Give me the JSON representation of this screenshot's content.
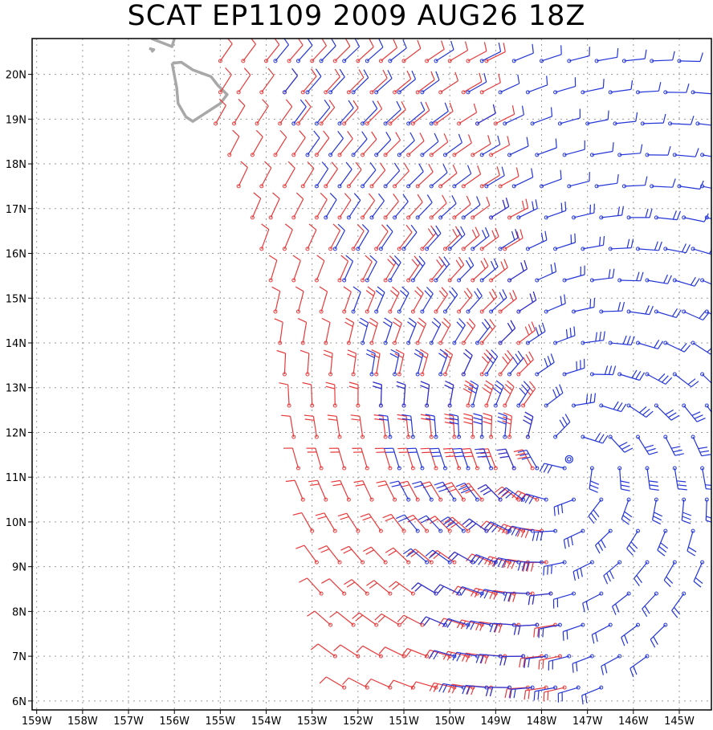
{
  "title": "SCAT EP1109 2009 AUG26 18Z",
  "colors": {
    "asc_pass": "#e8393a",
    "desc_pass": "#2335d8",
    "land": "#a8a8a8",
    "grid": "#9a9a9a"
  },
  "map": {
    "lon_range": [
      -159.1,
      -144.3
    ],
    "lat_range": [
      5.8,
      20.8
    ],
    "grid": true,
    "lon_ticks": [
      {
        "value": -159,
        "label": "159W"
      },
      {
        "value": -158,
        "label": "158W"
      },
      {
        "value": -157,
        "label": "157W"
      },
      {
        "value": -156,
        "label": "156W"
      },
      {
        "value": -155,
        "label": "155W"
      },
      {
        "value": -154,
        "label": "154W"
      },
      {
        "value": -153,
        "label": "153W"
      },
      {
        "value": -152,
        "label": "152W"
      },
      {
        "value": -151,
        "label": "151W"
      },
      {
        "value": -150,
        "label": "150W"
      },
      {
        "value": -149,
        "label": "149W"
      },
      {
        "value": -148,
        "label": "148W"
      },
      {
        "value": -147,
        "label": "147W"
      },
      {
        "value": -146,
        "label": "146W"
      },
      {
        "value": -145,
        "label": "145W"
      }
    ],
    "lat_ticks": [
      {
        "value": 6,
        "label": "6N"
      },
      {
        "value": 7,
        "label": "7N"
      },
      {
        "value": 8,
        "label": "8N"
      },
      {
        "value": 9,
        "label": "9N"
      },
      {
        "value": 10,
        "label": "10N"
      },
      {
        "value": 11,
        "label": "11N"
      },
      {
        "value": 12,
        "label": "12N"
      },
      {
        "value": 13,
        "label": "13N"
      },
      {
        "value": 14,
        "label": "14N"
      },
      {
        "value": 15,
        "label": "15N"
      },
      {
        "value": 16,
        "label": "16N"
      },
      {
        "value": 17,
        "label": "17N"
      },
      {
        "value": 18,
        "label": "18N"
      },
      {
        "value": 19,
        "label": "19N"
      },
      {
        "value": 20,
        "label": "20N"
      }
    ],
    "storm_center": {
      "lon": -147.4,
      "lat": 11.4
    },
    "land_outlines": [
      [
        [
          -156.05,
          20.25
        ],
        [
          -155.85,
          20.27
        ],
        [
          -155.6,
          20.1
        ],
        [
          -155.2,
          19.95
        ],
        [
          -155.05,
          19.75
        ],
        [
          -154.85,
          19.55
        ],
        [
          -155.0,
          19.35
        ],
        [
          -155.3,
          19.15
        ],
        [
          -155.6,
          18.95
        ],
        [
          -155.75,
          19.05
        ],
        [
          -155.92,
          19.35
        ],
        [
          -155.95,
          19.7
        ],
        [
          -156.05,
          20.25
        ]
      ],
      [
        [
          -156.5,
          20.8
        ],
        [
          -156.3,
          20.72
        ],
        [
          -156.05,
          20.62
        ],
        [
          -156.0,
          20.8
        ]
      ],
      [
        [
          -156.55,
          20.58
        ],
        [
          -156.45,
          20.55
        ],
        [
          -156.5,
          20.5
        ]
      ]
    ]
  },
  "chart_data": {
    "type": "scatter",
    "title": "SCAT EP1109 2009 AUG26 18Z",
    "xlabel": "",
    "ylabel": "",
    "xlim": [
      -159.1,
      -144.3
    ],
    "ylim": [
      5.8,
      20.8
    ],
    "grid": true,
    "series": [
      {
        "color": "#e8393a",
        "rows": [
          [
            20.3,
            [
              -155.0,
              -154.5,
              -154.0,
              -153.5,
              -153.0,
              -152.5,
              -152.0,
              -151.5,
              -151.0,
              -150.5,
              -150.0,
              -149.6,
              -149.2
            ]
          ],
          [
            19.6,
            [
              -155.0,
              -154.6,
              -154.1,
              -153.6,
              -153.2,
              -152.7,
              -152.2,
              -151.7,
              -151.2,
              -150.7,
              -150.2,
              -149.7,
              -149.3
            ]
          ],
          [
            18.9,
            [
              -155.1,
              -154.7,
              -154.2,
              -153.7,
              -153.3,
              -152.8,
              -152.3,
              -151.8,
              -151.3,
              -150.8,
              -150.3,
              -149.8,
              -149.4,
              -149.0
            ]
          ],
          [
            18.2,
            [
              -154.8,
              -154.3,
              -153.8,
              -153.4,
              -152.9,
              -152.4,
              -151.9,
              -151.4,
              -150.9,
              -150.4,
              -149.9,
              -149.5,
              -149.1
            ]
          ],
          [
            17.5,
            [
              -154.6,
              -154.1,
              -153.6,
              -153.2,
              -152.7,
              -152.2,
              -151.7,
              -151.2,
              -150.7,
              -150.2,
              -149.7,
              -149.3,
              -148.9
            ]
          ],
          [
            16.8,
            [
              -154.3,
              -153.9,
              -153.4,
              -152.9,
              -152.4,
              -151.9,
              -151.4,
              -150.9,
              -150.4,
              -149.9,
              -149.5,
              -149.1,
              -148.7
            ]
          ],
          [
            16.1,
            [
              -154.1,
              -153.6,
              -153.1,
              -152.6,
              -152.1,
              -151.6,
              -151.1,
              -150.6,
              -150.1,
              -149.7,
              -149.3,
              -148.8
            ]
          ],
          [
            15.4,
            [
              -153.9,
              -153.4,
              -152.9,
              -152.4,
              -151.9,
              -151.4,
              -150.9,
              -150.4,
              -150.0,
              -149.5,
              -149.1,
              -148.7
            ]
          ],
          [
            14.7,
            [
              -153.8,
              -153.3,
              -152.8,
              -152.3,
              -151.8,
              -151.3,
              -150.8,
              -150.3,
              -149.8,
              -149.3,
              -148.9,
              -148.5
            ]
          ],
          [
            14.0,
            [
              -153.7,
              -153.2,
              -152.7,
              -152.2,
              -151.7,
              -151.2,
              -150.7,
              -150.2,
              -149.7,
              -149.3,
              -148.9,
              -148.5
            ]
          ],
          [
            13.3,
            [
              -153.6,
              -153.1,
              -152.6,
              -152.1,
              -151.6,
              -151.1,
              -150.6,
              -150.1,
              -149.7,
              -149.3,
              -148.9,
              -148.5
            ]
          ],
          [
            12.6,
            [
              -153.5,
              -153.0,
              -152.5,
              -152.0,
              -151.5,
              -151.0,
              -150.5,
              -150.0,
              -149.6,
              -149.2,
              -148.8,
              -148.4
            ]
          ],
          [
            11.9,
            [
              -153.4,
              -152.9,
              -152.4,
              -151.9,
              -151.4,
              -150.9,
              -150.4,
              -149.9,
              -149.5,
              -149.1,
              -148.7,
              -148.3
            ]
          ],
          [
            11.2,
            [
              -153.3,
              -152.8,
              -152.3,
              -151.8,
              -151.3,
              -150.8,
              -150.3,
              -149.8,
              -149.4,
              -149.0,
              -148.6,
              -148.2
            ]
          ],
          [
            10.5,
            [
              -153.2,
              -152.7,
              -152.2,
              -151.7,
              -151.2,
              -150.7,
              -150.2,
              -149.7,
              -149.3,
              -148.9,
              -148.5,
              -148.1
            ]
          ],
          [
            9.8,
            [
              -153.0,
              -152.5,
              -152.0,
              -151.5,
              -151.0,
              -150.5,
              -150.0,
              -149.6,
              -149.2,
              -148.8,
              -148.4,
              -148.0
            ]
          ],
          [
            9.1,
            [
              -152.9,
              -152.4,
              -151.9,
              -151.4,
              -150.9,
              -150.4,
              -149.9,
              -149.5,
              -149.1,
              -148.7,
              -148.3,
              -147.9
            ]
          ],
          [
            8.4,
            [
              -152.8,
              -152.3,
              -151.8,
              -151.3,
              -150.8,
              -150.3,
              -149.8,
              -149.4,
              -149.0,
              -148.6,
              -148.2,
              -147.8
            ]
          ],
          [
            7.7,
            [
              -152.6,
              -152.1,
              -151.6,
              -151.1,
              -150.6,
              -150.1,
              -149.7,
              -149.3,
              -148.9,
              -148.5,
              -148.1,
              -147.7
            ]
          ],
          [
            7.0,
            [
              -152.5,
              -152.0,
              -151.5,
              -151.0,
              -150.5,
              -150.0,
              -149.6,
              -149.2,
              -148.8,
              -148.4,
              -148.0,
              -147.6
            ]
          ],
          [
            6.3,
            [
              -152.3,
              -151.8,
              -151.3,
              -150.8,
              -150.3,
              -149.9,
              -149.5,
              -149.1,
              -148.7,
              -148.3,
              -147.9,
              -147.5
            ]
          ]
        ]
      },
      {
        "color": "#2335d8",
        "rows": [
          [
            20.3,
            [
              -153.8,
              -153.3,
              -152.8,
              -152.3,
              -151.8,
              -151.3,
              -150.3,
              -149.3,
              -148.6,
              -148.0,
              -147.4,
              -146.8,
              -146.2,
              -145.6,
              -145.0
            ]
          ],
          [
            19.6,
            [
              -153.6,
              -153.1,
              -152.6,
              -152.1,
              -151.6,
              -151.1,
              -150.6,
              -149.6,
              -148.9,
              -148.3,
              -147.7,
              -147.1,
              -146.5,
              -145.9,
              -145.3,
              -144.7
            ]
          ],
          [
            18.9,
            [
              -153.4,
              -152.9,
              -152.4,
              -151.9,
              -151.4,
              -150.9,
              -150.4,
              -149.4,
              -148.8,
              -148.2,
              -147.6,
              -147.0,
              -146.4,
              -145.8,
              -145.2,
              -144.6
            ]
          ],
          [
            18.2,
            [
              -153.1,
              -152.6,
              -152.1,
              -151.6,
              -151.1,
              -150.6,
              -150.1,
              -149.3,
              -148.7,
              -148.1,
              -147.5,
              -146.9,
              -146.3,
              -145.7,
              -145.1,
              -144.5
            ]
          ],
          [
            17.5,
            [
              -152.9,
              -152.4,
              -151.9,
              -151.4,
              -150.9,
              -150.4,
              -149.9,
              -149.2,
              -148.6,
              -148.0,
              -147.4,
              -146.8,
              -146.2,
              -145.6,
              -145.0,
              -144.5
            ]
          ],
          [
            16.8,
            [
              -152.7,
              -152.2,
              -151.7,
              -151.2,
              -150.7,
              -150.2,
              -149.7,
              -149.1,
              -148.5,
              -147.9,
              -147.3,
              -146.7,
              -146.1,
              -145.5,
              -144.9,
              -144.4
            ]
          ],
          [
            16.1,
            [
              -152.5,
              -152.0,
              -151.5,
              -151.0,
              -150.5,
              -150.0,
              -149.5,
              -148.9,
              -148.3,
              -147.7,
              -147.1,
              -146.5,
              -145.9,
              -145.3,
              -144.7
            ]
          ],
          [
            15.4,
            [
              -152.3,
              -151.8,
              -151.3,
              -150.8,
              -150.3,
              -149.8,
              -149.3,
              -148.7,
              -148.1,
              -147.5,
              -146.9,
              -146.3,
              -145.7,
              -145.1,
              -144.5
            ]
          ],
          [
            14.7,
            [
              -152.1,
              -151.6,
              -151.1,
              -150.6,
              -150.1,
              -149.6,
              -149.1,
              -148.5,
              -147.9,
              -147.3,
              -146.7,
              -146.1,
              -145.5,
              -144.9,
              -144.4
            ]
          ],
          [
            14.0,
            [
              -151.9,
              -151.4,
              -150.9,
              -150.4,
              -149.9,
              -149.4,
              -148.9,
              -148.3,
              -147.7,
              -147.1,
              -146.5,
              -145.9,
              -145.3,
              -144.7
            ]
          ],
          [
            13.3,
            [
              -151.7,
              -151.2,
              -150.7,
              -150.2,
              -149.7,
              -149.2,
              -148.7,
              -148.1,
              -147.5,
              -146.9,
              -146.3,
              -145.7,
              -145.1,
              -144.5
            ]
          ],
          [
            12.6,
            [
              -151.5,
              -151.0,
              -150.5,
              -150.0,
              -149.5,
              -149.0,
              -148.5,
              -147.9,
              -147.3,
              -146.7,
              -146.1,
              -145.5,
              -144.9,
              -144.4
            ]
          ],
          [
            11.9,
            [
              -151.3,
              -150.8,
              -150.3,
              -149.8,
              -149.3,
              -148.8,
              -148.3,
              -147.7,
              -147.1,
              -146.5,
              -145.9,
              -145.3,
              -144.7
            ]
          ],
          [
            11.2,
            [
              -151.1,
              -150.6,
              -150.1,
              -149.6,
              -149.1,
              -148.6,
              -148.1,
              -147.5,
              -146.9,
              -146.3,
              -145.7,
              -145.1,
              -144.5
            ]
          ],
          [
            10.5,
            [
              -150.9,
              -150.4,
              -149.9,
              -149.4,
              -148.9,
              -148.4,
              -147.9,
              -147.3,
              -146.7,
              -146.1,
              -145.5,
              -144.9,
              -144.4
            ]
          ],
          [
            9.8,
            [
              -150.7,
              -150.2,
              -149.7,
              -149.2,
              -148.7,
              -148.2,
              -147.7,
              -147.1,
              -146.5,
              -145.9,
              -145.3,
              -144.7
            ]
          ],
          [
            9.1,
            [
              -150.5,
              -150.0,
              -149.5,
              -149.0,
              -148.5,
              -148.0,
              -147.5,
              -146.9,
              -146.3,
              -145.7,
              -145.1,
              -144.5
            ]
          ],
          [
            8.4,
            [
              -150.3,
              -149.8,
              -149.3,
              -148.8,
              -148.3,
              -147.8,
              -147.3,
              -146.7,
              -146.1,
              -145.5,
              -144.9
            ]
          ],
          [
            7.7,
            [
              -150.1,
              -149.6,
              -149.1,
              -148.6,
              -148.1,
              -147.6,
              -147.1,
              -146.5,
              -145.9,
              -145.3
            ]
          ],
          [
            7.0,
            [
              -149.9,
              -149.4,
              -148.9,
              -148.4,
              -147.9,
              -147.4,
              -146.9,
              -146.3,
              -145.7
            ]
          ],
          [
            6.3,
            [
              -149.7,
              -149.2,
              -148.7,
              -148.2,
              -147.7,
              -147.2,
              -146.7
            ]
          ]
        ]
      }
    ]
  }
}
